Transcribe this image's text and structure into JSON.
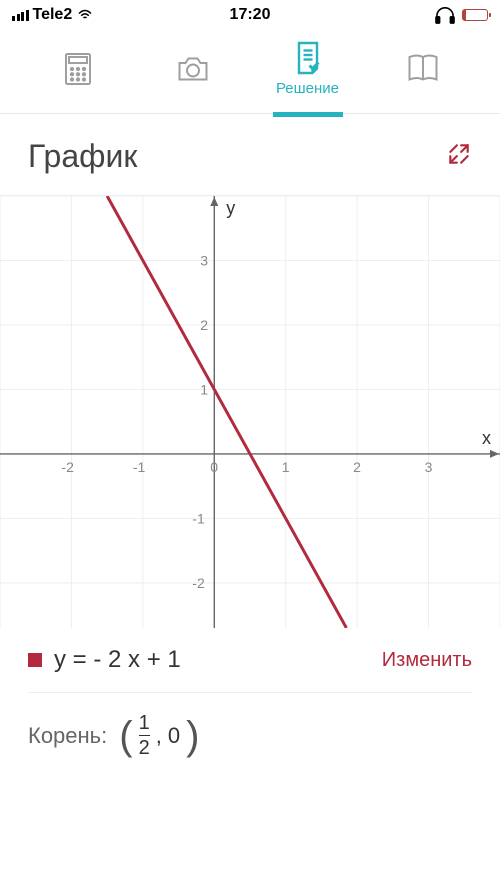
{
  "status": {
    "carrier": "Tele2",
    "time": "17:20"
  },
  "tabs": {
    "active_index": 2,
    "items": [
      {
        "name": "calculator",
        "label": ""
      },
      {
        "name": "camera",
        "label": ""
      },
      {
        "name": "solution",
        "label": "Решение"
      },
      {
        "name": "book",
        "label": ""
      }
    ]
  },
  "section": {
    "title": "График"
  },
  "chart": {
    "type": "line",
    "x_axis_label": "x",
    "y_axis_label": "y",
    "xlim": [
      -3,
      4
    ],
    "ylim": [
      -2.7,
      4
    ],
    "xticks": [
      -2,
      -1,
      0,
      1,
      2,
      3
    ],
    "yticks": [
      -2,
      -1,
      0,
      1,
      2,
      3
    ],
    "grid_color": "#eeeeee",
    "axis_color": "#666666",
    "tick_label_color": "#888888",
    "tick_fontsize": 14,
    "axis_label_fontsize": 18,
    "background": "#ffffff",
    "line": {
      "color": "#b22a3d",
      "width": 3,
      "points": [
        [
          -1.5,
          4
        ],
        [
          1.85,
          -2.7
        ]
      ]
    }
  },
  "equation": {
    "marker_color": "#b22a3d",
    "text": "y = - 2 x + 1",
    "edit_label": "Изменить"
  },
  "root": {
    "label": "Корень:",
    "value": {
      "numerator": "1",
      "denominator": "2",
      "second": "0"
    }
  },
  "colors": {
    "accent": "#24b3bf",
    "brand": "#b22a3d"
  }
}
